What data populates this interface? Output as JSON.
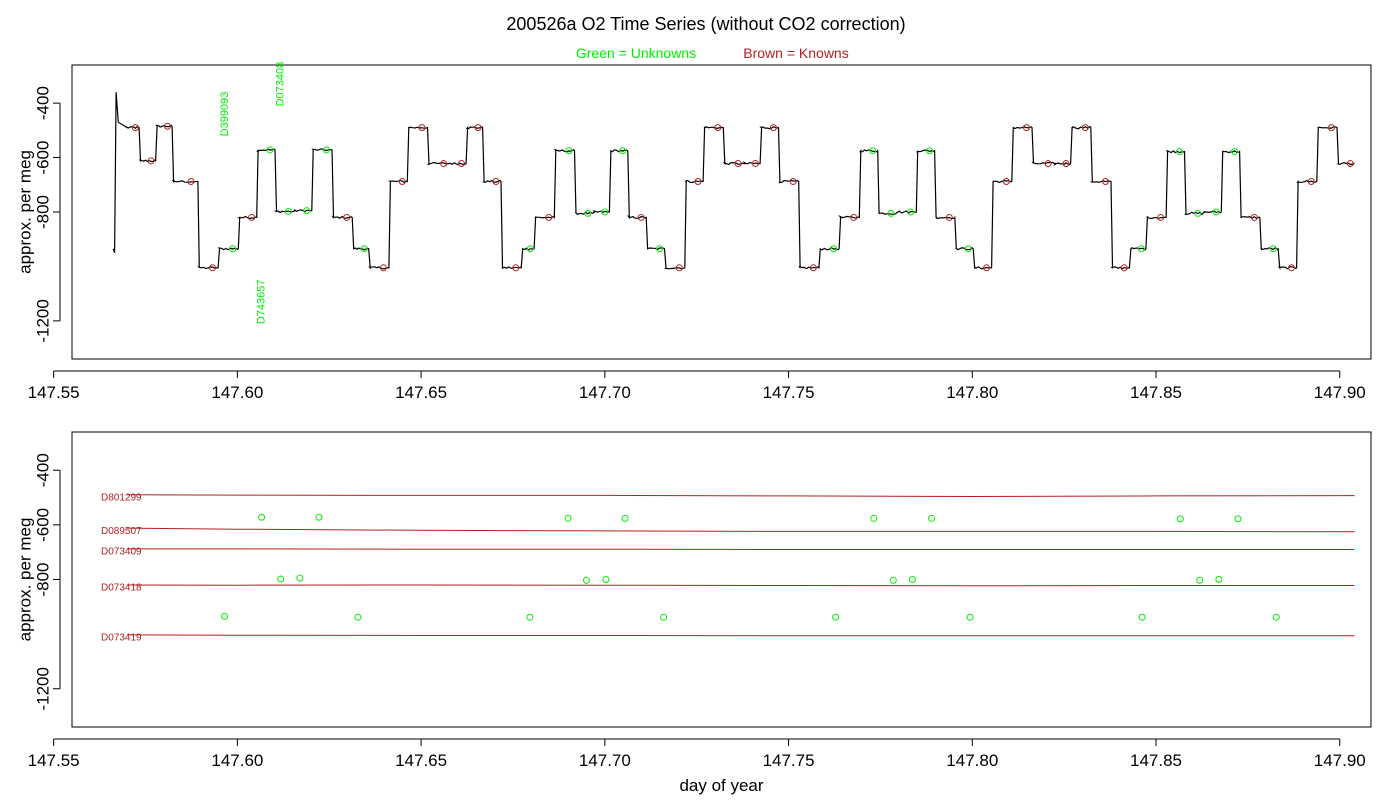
{
  "title": "200526a   O2 Time Series (without CO2 correction)",
  "legend": {
    "unknowns": "Green = Unknowns",
    "knowns": "Brown = Knowns",
    "unknowns_color": "#00ee00",
    "knowns_color": "#b22222"
  },
  "colors": {
    "trace": "#000000",
    "axis": "#000000",
    "unknown": "#00ee00",
    "known": "#b22222"
  },
  "chart_data": [
    {
      "type": "line",
      "panel": "top",
      "ylabel": "approx. per meg",
      "xlabel": "",
      "xlim": [
        147.555,
        147.9085
      ],
      "ylim": [
        -1340,
        -260
      ],
      "y_reversed": true,
      "xticks": [
        "147.55",
        "147.60",
        "147.65",
        "147.70",
        "147.75",
        "147.80",
        "147.85",
        "147.90"
      ],
      "yticks": [
        "-400",
        "-600",
        "-800",
        "-1200"
      ],
      "tank_labels": [
        {
          "label": "D399093",
          "x": 147.5966,
          "y": -440
        },
        {
          "label": "D073408",
          "x": 147.6118,
          "y": -330
        },
        {
          "label": "D743657",
          "x": 147.6066,
          "y": -1130
        }
      ],
      "segments": [
        {
          "start": 147.57,
          "end": 147.573,
          "y": -490,
          "kind": "known"
        },
        {
          "start": 147.5735,
          "end": 147.5775,
          "y": -612,
          "kind": "known"
        },
        {
          "start": 147.578,
          "end": 147.582,
          "y": -485,
          "kind": "known"
        },
        {
          "start": 147.5825,
          "end": 147.589,
          "y": -688,
          "kind": "known"
        },
        {
          "start": 147.5895,
          "end": 147.5945,
          "y": -1005,
          "kind": "known"
        },
        {
          "start": 147.595,
          "end": 147.6,
          "y": -935,
          "kind": "unknown"
        },
        {
          "start": 147.6005,
          "end": 147.605,
          "y": -820,
          "kind": "known"
        },
        {
          "start": 147.6055,
          "end": 147.61,
          "y": -572,
          "kind": "unknown"
        },
        {
          "start": 147.6105,
          "end": 147.615,
          "y": -798,
          "kind": "unknown"
        },
        {
          "start": 147.6155,
          "end": 147.62,
          "y": -795,
          "kind": "unknown"
        },
        {
          "start": 147.6205,
          "end": 147.6255,
          "y": -572,
          "kind": "unknown"
        },
        {
          "start": 147.626,
          "end": 147.631,
          "y": -820,
          "kind": "known"
        },
        {
          "start": 147.6315,
          "end": 147.6355,
          "y": -935,
          "kind": "unknown"
        },
        {
          "start": 147.636,
          "end": 147.641,
          "y": -1005,
          "kind": "known"
        },
        {
          "start": 147.6415,
          "end": 147.646,
          "y": -688,
          "kind": "known"
        },
        {
          "start": 147.6465,
          "end": 147.6515,
          "y": -490,
          "kind": "known"
        },
        {
          "start": 147.652,
          "end": 147.6575,
          "y": -622,
          "kind": "known"
        },
        {
          "start": 147.658,
          "end": 147.662,
          "y": -622,
          "kind": "known"
        },
        {
          "start": 147.6625,
          "end": 147.6665,
          "y": -490,
          "kind": "known"
        },
        {
          "start": 147.667,
          "end": 147.6715,
          "y": -688,
          "kind": "known"
        },
        {
          "start": 147.672,
          "end": 147.677,
          "y": -1005,
          "kind": "known"
        },
        {
          "start": 147.6775,
          "end": 147.6805,
          "y": -935,
          "kind": "unknown"
        },
        {
          "start": 147.681,
          "end": 147.686,
          "y": -820,
          "kind": "known"
        },
        {
          "start": 147.6865,
          "end": 147.6915,
          "y": -575,
          "kind": "unknown"
        },
        {
          "start": 147.692,
          "end": 147.6965,
          "y": -805,
          "kind": "unknown"
        },
        {
          "start": 147.697,
          "end": 147.701,
          "y": -800,
          "kind": "unknown"
        },
        {
          "start": 147.7015,
          "end": 147.706,
          "y": -575,
          "kind": "unknown"
        },
        {
          "start": 147.7065,
          "end": 147.711,
          "y": -820,
          "kind": "known"
        },
        {
          "start": 147.7115,
          "end": 147.716,
          "y": -935,
          "kind": "unknown"
        },
        {
          "start": 147.7165,
          "end": 147.7215,
          "y": -1005,
          "kind": "known"
        },
        {
          "start": 147.722,
          "end": 147.7265,
          "y": -688,
          "kind": "known"
        },
        {
          "start": 147.727,
          "end": 147.732,
          "y": -490,
          "kind": "known"
        },
        {
          "start": 147.7325,
          "end": 147.7375,
          "y": -622,
          "kind": "known"
        },
        {
          "start": 147.738,
          "end": 147.742,
          "y": -622,
          "kind": "known"
        },
        {
          "start": 147.7425,
          "end": 147.747,
          "y": -490,
          "kind": "known"
        },
        {
          "start": 147.7475,
          "end": 147.7525,
          "y": -688,
          "kind": "known"
        },
        {
          "start": 147.753,
          "end": 147.758,
          "y": -1005,
          "kind": "known"
        },
        {
          "start": 147.7585,
          "end": 147.7635,
          "y": -935,
          "kind": "unknown"
        },
        {
          "start": 147.764,
          "end": 147.769,
          "y": -820,
          "kind": "known"
        },
        {
          "start": 147.7695,
          "end": 147.774,
          "y": -575,
          "kind": "unknown"
        },
        {
          "start": 147.7745,
          "end": 147.779,
          "y": -805,
          "kind": "unknown"
        },
        {
          "start": 147.7795,
          "end": 147.7845,
          "y": -800,
          "kind": "unknown"
        },
        {
          "start": 147.785,
          "end": 147.7895,
          "y": -575,
          "kind": "unknown"
        },
        {
          "start": 147.79,
          "end": 147.795,
          "y": -820,
          "kind": "known"
        },
        {
          "start": 147.7955,
          "end": 147.8,
          "y": -935,
          "kind": "unknown"
        },
        {
          "start": 147.8005,
          "end": 147.805,
          "y": -1005,
          "kind": "known"
        },
        {
          "start": 147.8055,
          "end": 147.8105,
          "y": -688,
          "kind": "known"
        },
        {
          "start": 147.811,
          "end": 147.816,
          "y": -490,
          "kind": "known"
        },
        {
          "start": 147.8165,
          "end": 147.822,
          "y": -622,
          "kind": "known"
        },
        {
          "start": 147.8225,
          "end": 147.8265,
          "y": -622,
          "kind": "known"
        },
        {
          "start": 147.827,
          "end": 147.832,
          "y": -490,
          "kind": "known"
        },
        {
          "start": 147.8325,
          "end": 147.8375,
          "y": -688,
          "kind": "known"
        },
        {
          "start": 147.838,
          "end": 147.8425,
          "y": -1005,
          "kind": "known"
        },
        {
          "start": 147.843,
          "end": 147.847,
          "y": -935,
          "kind": "unknown"
        },
        {
          "start": 147.8475,
          "end": 147.8525,
          "y": -820,
          "kind": "known"
        },
        {
          "start": 147.853,
          "end": 147.8575,
          "y": -578,
          "kind": "unknown"
        },
        {
          "start": 147.858,
          "end": 147.8625,
          "y": -805,
          "kind": "unknown"
        },
        {
          "start": 147.863,
          "end": 147.8675,
          "y": -800,
          "kind": "unknown"
        },
        {
          "start": 147.868,
          "end": 147.8725,
          "y": -578,
          "kind": "unknown"
        },
        {
          "start": 147.873,
          "end": 147.878,
          "y": -820,
          "kind": "known"
        },
        {
          "start": 147.8785,
          "end": 147.883,
          "y": -935,
          "kind": "unknown"
        },
        {
          "start": 147.8835,
          "end": 147.888,
          "y": -1005,
          "kind": "known"
        },
        {
          "start": 147.8885,
          "end": 147.8935,
          "y": -688,
          "kind": "known"
        },
        {
          "start": 147.894,
          "end": 147.899,
          "y": -490,
          "kind": "known"
        },
        {
          "start": 147.8995,
          "end": 147.904,
          "y": -622,
          "kind": "known"
        }
      ]
    },
    {
      "type": "scatter",
      "panel": "bottom",
      "ylabel": "approx. per meg",
      "xlabel": "day of year",
      "xlim": [
        147.555,
        147.9085
      ],
      "ylim": [
        -1340,
        -260
      ],
      "y_reversed": true,
      "xticks": [
        "147.55",
        "147.60",
        "147.65",
        "147.70",
        "147.75",
        "147.80",
        "147.85",
        "147.90"
      ],
      "yticks": [
        "-400",
        "-600",
        "-800",
        "-1200"
      ],
      "known_lines": [
        {
          "name": "D801299",
          "x": [
            147.57,
            147.6,
            147.65,
            147.7,
            147.75,
            147.8,
            147.85,
            147.904
          ],
          "y": [
            -490,
            -491,
            -492,
            -492,
            -494,
            -496,
            -494,
            -493
          ]
        },
        {
          "name": "D089507",
          "x": [
            147.57,
            147.6,
            147.65,
            147.7,
            147.75,
            147.8,
            147.85,
            147.904
          ],
          "y": [
            -612,
            -616,
            -620,
            -622,
            -624,
            -624,
            -624,
            -625
          ]
        },
        {
          "name": "D073409",
          "x": [
            147.57,
            147.6,
            147.65,
            147.7,
            147.75,
            147.8,
            147.85,
            147.904
          ],
          "y": [
            -688,
            -688,
            -689,
            -689,
            -690,
            -690,
            -690,
            -690
          ]
        },
        {
          "name": "D073418",
          "x": [
            147.57,
            147.6,
            147.65,
            147.7,
            147.75,
            147.8,
            147.85,
            147.904
          ],
          "y": [
            -820,
            -821,
            -820,
            -821,
            -822,
            -823,
            -822,
            -822
          ]
        },
        {
          "name": "D073419",
          "x": [
            147.57,
            147.6,
            147.65,
            147.7,
            147.75,
            147.8,
            147.85,
            147.904
          ],
          "y": [
            -1003,
            -1004,
            -1005,
            -1005,
            -1006,
            -1006,
            -1006,
            -1006
          ]
        }
      ],
      "unknown_points": [
        {
          "x": 147.5965,
          "y": -935
        },
        {
          "x": 147.6066,
          "y": -572
        },
        {
          "x": 147.6118,
          "y": -798
        },
        {
          "x": 147.617,
          "y": -795
        },
        {
          "x": 147.6222,
          "y": -572
        },
        {
          "x": 147.6328,
          "y": -938
        },
        {
          "x": 147.6796,
          "y": -938
        },
        {
          "x": 147.69,
          "y": -576
        },
        {
          "x": 147.695,
          "y": -803
        },
        {
          "x": 147.7003,
          "y": -800
        },
        {
          "x": 147.7055,
          "y": -576
        },
        {
          "x": 147.716,
          "y": -938
        },
        {
          "x": 147.7628,
          "y": -938
        },
        {
          "x": 147.7732,
          "y": -576
        },
        {
          "x": 147.7785,
          "y": -803
        },
        {
          "x": 147.7837,
          "y": -800
        },
        {
          "x": 147.7889,
          "y": -576
        },
        {
          "x": 147.7994,
          "y": -938
        },
        {
          "x": 147.8462,
          "y": -938
        },
        {
          "x": 147.8566,
          "y": -578
        },
        {
          "x": 147.8619,
          "y": -803
        },
        {
          "x": 147.8671,
          "y": -800
        },
        {
          "x": 147.8723,
          "y": -578
        },
        {
          "x": 147.8827,
          "y": -938
        }
      ]
    }
  ]
}
